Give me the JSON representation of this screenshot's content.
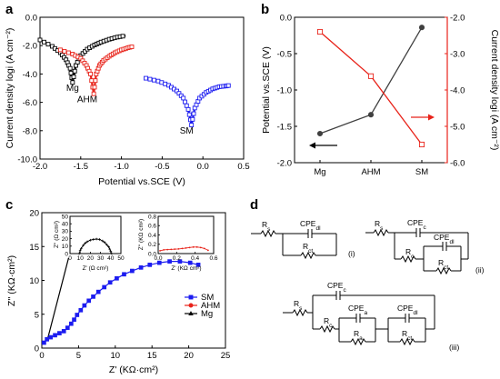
{
  "panels": {
    "a": "a",
    "b": "b",
    "c": "c",
    "d": "d"
  },
  "chart_data": [
    {
      "panel": "a",
      "type": "line",
      "xlabel": "Potential vs.SCE (V)",
      "ylabel": "Current density  logi (A cm⁻²)",
      "xlim": [
        -2.0,
        0.5
      ],
      "ylim": [
        -10.0,
        0.0
      ],
      "xticks": [
        "-2.0",
        "-1.5",
        "-1.0",
        "-0.5",
        "0.0",
        "0.5"
      ],
      "yticks": [
        "0.0",
        "-2.0",
        "-4.0",
        "-6.0",
        "-8.0",
        "-10.0"
      ],
      "xtick_values": [
        -2.0,
        -1.5,
        -1.0,
        -0.5,
        0.0,
        0.5
      ],
      "ytick_values": [
        0.0,
        -2.0,
        -4.0,
        -6.0,
        -8.0,
        -10.0
      ],
      "series": [
        {
          "name": "Mg",
          "color": "#000000",
          "ecorr": -1.6,
          "icorr_log": -4.6,
          "x": [
            -2.0,
            -1.85,
            -1.75,
            -1.68,
            -1.63,
            -1.6,
            -1.56,
            -1.5,
            -1.42,
            -1.33,
            -1.25,
            -1.15,
            -1.05,
            -0.95
          ],
          "y": [
            -1.6,
            -2.05,
            -2.5,
            -3.0,
            -3.6,
            -4.6,
            -3.4,
            -2.7,
            -2.25,
            -1.95,
            -1.75,
            -1.55,
            -1.4,
            -1.3
          ]
        },
        {
          "name": "AHM",
          "color": "#e8231a",
          "ecorr": -1.34,
          "icorr_log": -5.4,
          "x": [
            -1.75,
            -1.6,
            -1.5,
            -1.43,
            -1.38,
            -1.34,
            -1.31,
            -1.27,
            -1.22,
            -1.15,
            -1.08,
            -1.0,
            -0.92,
            -0.85
          ],
          "y": [
            -2.3,
            -2.6,
            -2.9,
            -3.4,
            -4.0,
            -5.4,
            -4.0,
            -3.4,
            -3.05,
            -2.75,
            -2.5,
            -2.3,
            -2.15,
            -2.05
          ]
        },
        {
          "name": "SM",
          "color": "#1c1cf0",
          "ecorr": -0.14,
          "icorr_log": -7.6,
          "x": [
            -0.7,
            -0.55,
            -0.42,
            -0.32,
            -0.24,
            -0.18,
            -0.14,
            -0.1,
            -0.04,
            0.04,
            0.12,
            0.2,
            0.28,
            0.33
          ],
          "y": [
            -4.3,
            -4.5,
            -4.8,
            -5.2,
            -5.7,
            -6.5,
            -7.6,
            -6.4,
            -5.7,
            -5.3,
            -5.05,
            -4.9,
            -4.85,
            -4.8
          ]
        }
      ],
      "annotations": [
        {
          "text": "Mg",
          "x": -1.6,
          "y": -5.2
        },
        {
          "text": "AHM",
          "x": -1.42,
          "y": -6.0
        },
        {
          "text": "SM",
          "x": -0.2,
          "y": -8.2
        }
      ]
    },
    {
      "panel": "b",
      "type": "line",
      "categories": [
        "Mg",
        "AHM",
        "SM"
      ],
      "ylabel": "Potential vs.SCE (V)",
      "ylabel_right": "Current density  logi (A cm⁻²)",
      "ylim": [
        -2.0,
        0.0
      ],
      "ylim_right": [
        -6.0,
        -2.0
      ],
      "yticks": [
        "0.0",
        "-0.5",
        "-1.0",
        "-1.5",
        "-2.0"
      ],
      "ytick_values": [
        0.0,
        -0.5,
        -1.0,
        -1.5,
        -2.0
      ],
      "yticks_right": [
        "-2.0",
        "-3.0",
        "-4.0",
        "-5.0",
        "-6.0"
      ],
      "ytick_values_right": [
        -2.0,
        -3.0,
        -4.0,
        -5.0,
        -6.0
      ],
      "series": [
        {
          "axis": "left",
          "color": "#404040",
          "marker": "circle",
          "values": [
            -1.6,
            -1.34,
            -0.14
          ]
        },
        {
          "axis": "right",
          "color": "#e8231a",
          "marker": "square-open",
          "values": [
            -2.4,
            -3.62,
            -5.5
          ]
        }
      ]
    },
    {
      "panel": "c",
      "type": "scatter",
      "xlabel": "Z' (KΩ·cm²)",
      "ylabel": "Z'' (KΩ·cm²)",
      "xlim": [
        0,
        25
      ],
      "ylim": [
        0,
        20
      ],
      "xticks": [
        "0",
        "5",
        "10",
        "15",
        "20",
        "25"
      ],
      "yticks": [
        "0",
        "5",
        "10",
        "15",
        "20"
      ],
      "xtick_values": [
        0,
        5,
        10,
        15,
        20,
        25
      ],
      "ytick_values": [
        0,
        5,
        10,
        15,
        20
      ],
      "legend": {
        "position": "right",
        "entries": [
          "SM",
          "AHM",
          "Mg"
        ]
      },
      "series": [
        {
          "name": "SM",
          "color": "#1c1cf0",
          "marker": "square",
          "x": [
            0.3,
            0.7,
            1.2,
            1.8,
            2.4,
            3.0,
            3.5,
            4.0,
            4.4,
            4.8,
            5.3,
            5.8,
            6.4,
            7.0,
            7.7,
            8.5,
            9.3,
            10.2,
            11.2,
            12.3,
            13.5,
            14.7,
            16.0,
            17.4,
            18.8,
            20.2,
            21.3
          ],
          "y": [
            0.8,
            1.3,
            1.6,
            1.9,
            2.2,
            2.5,
            3.0,
            3.6,
            4.2,
            4.9,
            5.6,
            6.3,
            7.0,
            7.6,
            8.3,
            9.0,
            9.7,
            10.3,
            10.9,
            11.4,
            11.9,
            12.3,
            12.6,
            12.8,
            12.8,
            12.6,
            12.3
          ]
        },
        {
          "name": "AHM",
          "color": "#e8231a",
          "marker": "circle",
          "x": [],
          "y": []
        },
        {
          "name": "Mg",
          "color": "#000000",
          "marker": "triangle",
          "x": [],
          "y": []
        }
      ],
      "arrow": {
        "from": [
          0.8,
          1.4
        ],
        "to": [
          5.0,
          19.0
        ]
      }
    },
    {
      "panel": "c-inset-1",
      "type": "scatter",
      "series_name": "Mg",
      "xlabel": "Z' (Ω cm²)",
      "ylabel": "Z'' (Ω cm²)",
      "xlim": [
        0,
        50
      ],
      "ylim": [
        0,
        50
      ],
      "xticks": [
        "0",
        "10",
        "20",
        "30",
        "40",
        "50"
      ],
      "yticks": [
        "0",
        "10",
        "20",
        "30",
        "40",
        "50"
      ],
      "xtick_values": [
        0,
        10,
        20,
        30,
        40,
        50
      ],
      "ytick_values": [
        0,
        10,
        20,
        30,
        40,
        50
      ],
      "color": "#000000",
      "x": [
        9,
        10,
        11,
        13,
        15,
        17,
        20,
        23,
        26,
        29,
        32,
        34,
        36,
        38,
        39,
        40,
        41
      ],
      "y": [
        0,
        4,
        7,
        11,
        14,
        16,
        18,
        19,
        19.5,
        19,
        17,
        15,
        12,
        9,
        6,
        3,
        0
      ]
    },
    {
      "panel": "c-inset-2",
      "type": "scatter",
      "series_name": "AHM",
      "xlabel": "Z' (KΩ cm²)",
      "ylabel": "Z'' (KΩ cm²)",
      "xlim": [
        0,
        0.6
      ],
      "ylim": [
        0,
        0.8
      ],
      "xticks": [
        "0.0",
        "0.2",
        "0.4",
        "0.6"
      ],
      "yticks": [
        "0.0",
        "0.2",
        "0.4",
        "0.6",
        "0.8"
      ],
      "xtick_values": [
        0.0,
        0.2,
        0.4,
        0.6
      ],
      "ytick_values": [
        0.0,
        0.2,
        0.4,
        0.6,
        0.8
      ],
      "color": "#e8231a",
      "x": [
        0.02,
        0.06,
        0.1,
        0.14,
        0.18,
        0.22,
        0.26,
        0.3,
        0.34,
        0.38,
        0.42,
        0.46,
        0.5,
        0.54
      ],
      "y": [
        0.06,
        0.08,
        0.085,
        0.09,
        0.095,
        0.1,
        0.11,
        0.12,
        0.13,
        0.14,
        0.14,
        0.13,
        0.11,
        0.07
      ]
    }
  ],
  "circuits": {
    "i": {
      "label": "(i)",
      "Rs": "R",
      "Rs_sub": "s",
      "cpe": "CPE",
      "cpe_sub": "dl",
      "rct": "R",
      "rct_sub": "ct"
    },
    "ii": {
      "label": "(ii)",
      "Rs": "R",
      "Rs_sub": "s",
      "cpec": "CPE",
      "cpec_sub": "c",
      "rc": "R",
      "rc_sub": "c",
      "cpedl": "CPE",
      "cpedl_sub": "dl",
      "rct": "R",
      "rct_sub": "ct"
    },
    "iii": {
      "label": "(iii)",
      "Rs": "R",
      "Rs_sub": "s",
      "cpec": "CPE",
      "cpec_sub": "c",
      "rc": "R",
      "rc_sub": "c",
      "cpea": "CPE",
      "cpea_sub": "a",
      "ra": "R",
      "ra_sub": "a",
      "cpedl": "CPE",
      "cpedl_sub": "dl",
      "rct": "R",
      "rct_sub": "ct"
    }
  }
}
